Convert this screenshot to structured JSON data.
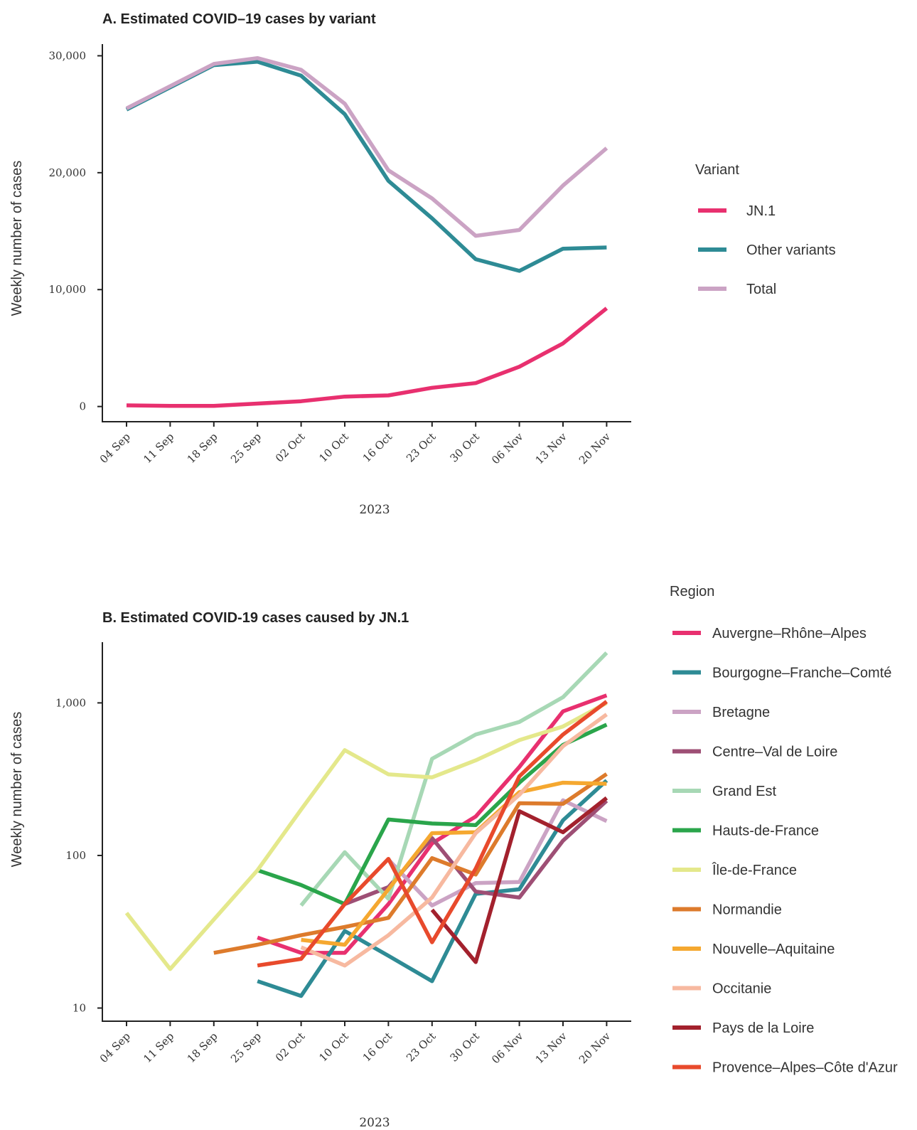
{
  "chart_data": [
    {
      "type": "line",
      "title": "A. Estimated COVID–19 cases by variant",
      "xlabel": "2023",
      "ylabel": "Weekly number of cases",
      "x": [
        "04 Sep",
        "11 Sep",
        "18 Sep",
        "25 Sep",
        "02 Oct",
        "10 Oct",
        "16 Oct",
        "23 Oct",
        "30 Oct",
        "06 Nov",
        "13 Nov",
        "20 Nov"
      ],
      "ylim": [
        -1300,
        31000
      ],
      "yticks": [
        0,
        10000,
        20000,
        30000
      ],
      "ytick_labels": [
        "0",
        "10,000",
        "20,000",
        "30,000"
      ],
      "legend_title": "Variant",
      "legend_position": "right",
      "grid": false,
      "series": [
        {
          "name": "JN.1",
          "color": "#e8306f",
          "values": [
            100,
            50,
            50,
            250,
            450,
            850,
            950,
            1600,
            2000,
            3400,
            5400,
            8400
          ]
        },
        {
          "name": "Other variants",
          "color": "#2e8b95",
          "values": [
            25400,
            27300,
            29200,
            29500,
            28300,
            25000,
            19300,
            16100,
            12600,
            11600,
            13500,
            13600
          ]
        },
        {
          "name": "Total",
          "color": "#cba3c4",
          "values": [
            25500,
            27400,
            29300,
            29800,
            28800,
            25900,
            20200,
            17800,
            14600,
            15100,
            18900,
            22100
          ]
        }
      ]
    },
    {
      "type": "line",
      "title": "B. Estimated COVID-19 cases caused by JN.1",
      "xlabel": "2023",
      "ylabel": "Weekly number of cases",
      "yscale": "log",
      "x": [
        "04 Sep",
        "11 Sep",
        "18 Sep",
        "25 Sep",
        "02 Oct",
        "10 Oct",
        "16 Oct",
        "23 Oct",
        "30 Oct",
        "06 Nov",
        "13 Nov",
        "20 Nov"
      ],
      "ylim": [
        8.2,
        2500
      ],
      "yticks": [
        10,
        100,
        1000
      ],
      "ytick_labels": [
        "10",
        "100",
        "1,000"
      ],
      "legend_title": "Region",
      "legend_position": "right",
      "grid": false,
      "series": [
        {
          "name": "Auvergne–Rhône–Alpes",
          "color": "#e8306f",
          "values": [
            null,
            null,
            null,
            29,
            23,
            23,
            48,
            120,
            180,
            380,
            880,
            1120
          ]
        },
        {
          "name": "Bourgogne–Franche–Comté",
          "color": "#2e8b95",
          "values": [
            null,
            null,
            null,
            15,
            12,
            32,
            22,
            15,
            56,
            60,
            170,
            310
          ]
        },
        {
          "name": "Bretagne",
          "color": "#cba3c4",
          "values": [
            null,
            null,
            null,
            null,
            null,
            null,
            94,
            47,
            66,
            67,
            230,
            168
          ]
        },
        {
          "name": "Centre–Val de Loire",
          "color": "#9e4f75",
          "values": [
            null,
            null,
            null,
            null,
            null,
            48,
            62,
            130,
            58,
            53,
            125,
            228
          ]
        },
        {
          "name": "Grand Est",
          "color": "#a7d8b5",
          "values": [
            null,
            null,
            null,
            null,
            47,
            105,
            52,
            430,
            620,
            750,
            1090,
            2130
          ]
        },
        {
          "name": "Hauts-de-France",
          "color": "#2aa54b",
          "values": [
            null,
            null,
            null,
            80,
            64,
            48,
            172,
            162,
            158,
            300,
            530,
            720
          ]
        },
        {
          "name": "Île-de-France",
          "color": "#e4e88b",
          "values": [
            42,
            18,
            38,
            80,
            200,
            490,
            340,
            325,
            420,
            570,
            700,
            1000
          ]
        },
        {
          "name": "Normandie",
          "color": "#dd7b2c",
          "values": [
            null,
            null,
            23,
            26,
            30,
            34,
            39,
            96,
            75,
            220,
            218,
            342
          ]
        },
        {
          "name": "Nouvelle–Aquitaine",
          "color": "#f5a830",
          "values": [
            null,
            null,
            null,
            null,
            28,
            26,
            60,
            140,
            142,
            260,
            300,
            295
          ]
        },
        {
          "name": "Occitanie",
          "color": "#f7b9a0",
          "values": [
            null,
            null,
            null,
            null,
            25,
            19,
            30,
            53,
            140,
            250,
            520,
            840
          ]
        },
        {
          "name": "Pays de la Loire",
          "color": "#a3212d",
          "values": [
            null,
            null,
            null,
            null,
            null,
            null,
            null,
            44,
            20,
            195,
            142,
            238
          ]
        },
        {
          "name": "Provence–Alpes–Côte d'Azur",
          "color": "#e84a2c",
          "values": [
            null,
            null,
            null,
            19,
            21,
            48,
            95,
            27,
            82,
            330,
            620,
            1020
          ]
        }
      ]
    }
  ]
}
